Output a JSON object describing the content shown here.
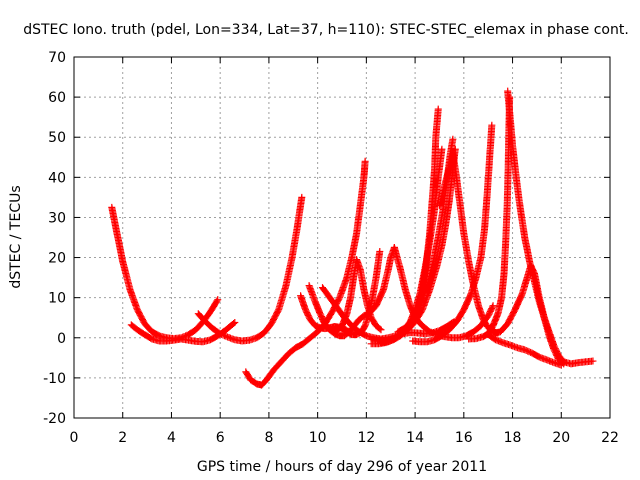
{
  "chart_data": {
    "type": "scatter",
    "title": "dSTEC Iono. truth (pdel, Lon=334, Lat=37, h=110): STEC-STEC_elemax in phase cont.",
    "xlabel": "GPS time / hours of day 296 of year 2011",
    "ylabel": "dSTEC  / TECUs",
    "xlim": [
      0,
      22
    ],
    "ylim": [
      -20,
      70
    ],
    "x_ticks": [
      0,
      2,
      4,
      6,
      8,
      10,
      12,
      14,
      16,
      18,
      20,
      22
    ],
    "y_ticks": [
      -20,
      -10,
      0,
      10,
      20,
      30,
      40,
      50,
      60,
      70
    ],
    "x_tick_labels": [
      "0",
      "2",
      "4",
      "6",
      "8",
      "10",
      "12",
      "14",
      "16",
      "18",
      "20",
      "22"
    ],
    "y_tick_labels": [
      "-20",
      "-10",
      "0",
      "10",
      "20",
      "30",
      "40",
      "50",
      "60",
      "70"
    ],
    "grid": true,
    "marker": "plus",
    "color": "#ff0000",
    "series": [
      {
        "points": [
          [
            1.55,
            32.5
          ],
          [
            1.8,
            25
          ],
          [
            2.0,
            19
          ],
          [
            2.3,
            12
          ],
          [
            2.6,
            7
          ],
          [
            2.9,
            3.5
          ],
          [
            3.2,
            1.5
          ],
          [
            3.5,
            0.5
          ],
          [
            3.8,
            0
          ],
          [
            4.1,
            -0.2
          ],
          [
            4.4,
            0
          ],
          [
            4.7,
            0.8
          ],
          [
            5.0,
            2
          ],
          [
            5.3,
            4
          ],
          [
            5.6,
            6.5
          ],
          [
            5.9,
            9.5
          ]
        ]
      },
      {
        "points": [
          [
            2.35,
            3.2
          ],
          [
            2.6,
            2.0
          ],
          [
            2.9,
            0.8
          ],
          [
            3.2,
            -0.3
          ],
          [
            3.5,
            -0.8
          ],
          [
            3.8,
            -0.8
          ],
          [
            4.1,
            -0.6
          ],
          [
            4.4,
            -0.3
          ],
          [
            4.7,
            -0.6
          ],
          [
            5.0,
            -0.9
          ],
          [
            5.3,
            -1.0
          ],
          [
            5.6,
            -0.5
          ],
          [
            5.9,
            0.5
          ],
          [
            6.2,
            1.8
          ],
          [
            6.6,
            3.8
          ]
        ]
      },
      {
        "points": [
          [
            5.1,
            6
          ],
          [
            5.4,
            4
          ],
          [
            5.7,
            2.3
          ],
          [
            6.0,
            1
          ],
          [
            6.3,
            0.2
          ],
          [
            6.6,
            -0.5
          ],
          [
            6.9,
            -0.8
          ],
          [
            7.2,
            -0.6
          ],
          [
            7.5,
            0
          ],
          [
            7.8,
            1.2
          ],
          [
            8.1,
            3.5
          ],
          [
            8.4,
            7
          ],
          [
            8.7,
            13
          ],
          [
            8.95,
            20
          ],
          [
            9.15,
            27
          ],
          [
            9.35,
            35
          ]
        ]
      },
      {
        "points": [
          [
            7.05,
            -8.5
          ],
          [
            7.25,
            -10.5
          ],
          [
            7.5,
            -11.5
          ],
          [
            7.7,
            -11.8
          ],
          [
            7.9,
            -10.5
          ],
          [
            8.2,
            -8
          ],
          [
            8.5,
            -6
          ],
          [
            8.8,
            -4
          ],
          [
            9.1,
            -2.5
          ],
          [
            9.4,
            -1.5
          ],
          [
            9.7,
            0
          ],
          [
            10.0,
            1.5
          ],
          [
            10.3,
            3.5
          ],
          [
            10.6,
            6.5
          ],
          [
            10.9,
            10
          ],
          [
            11.2,
            15
          ],
          [
            11.4,
            20
          ],
          [
            11.6,
            26
          ],
          [
            11.75,
            33
          ],
          [
            11.9,
            40
          ],
          [
            11.95,
            44
          ]
        ]
      },
      {
        "points": [
          [
            9.3,
            10.5
          ],
          [
            9.5,
            7
          ],
          [
            9.7,
            4.5
          ],
          [
            9.9,
            3
          ],
          [
            10.1,
            2.5
          ],
          [
            10.3,
            2.3
          ],
          [
            10.5,
            2.5
          ],
          [
            10.7,
            2.8
          ],
          [
            10.9,
            2.6
          ],
          [
            11.1,
            2.0
          ],
          [
            11.3,
            1.5
          ]
        ]
      },
      {
        "points": [
          [
            9.65,
            13
          ],
          [
            9.9,
            9
          ],
          [
            10.1,
            6
          ],
          [
            10.3,
            3.5
          ],
          [
            10.5,
            2
          ],
          [
            10.7,
            1
          ],
          [
            10.9,
            0.5
          ],
          [
            11.1,
            0.5
          ],
          [
            11.3,
            1.5
          ],
          [
            11.5,
            3
          ],
          [
            11.7,
            4.5
          ],
          [
            11.9,
            5.5
          ],
          [
            12.1,
            6
          ],
          [
            12.4,
            8
          ],
          [
            12.7,
            12
          ],
          [
            12.9,
            17
          ],
          [
            13.0,
            20
          ],
          [
            13.15,
            22.5
          ]
        ]
      },
      {
        "points": [
          [
            10.2,
            4.5
          ],
          [
            10.4,
            2.5
          ],
          [
            10.6,
            1.5
          ],
          [
            10.8,
            1.8
          ],
          [
            11.0,
            3
          ],
          [
            11.2,
            6
          ],
          [
            11.35,
            10
          ],
          [
            11.5,
            16
          ],
          [
            11.6,
            19.5
          ],
          [
            11.75,
            17
          ],
          [
            11.9,
            12
          ],
          [
            12.05,
            8
          ],
          [
            12.2,
            5
          ],
          [
            12.4,
            3
          ],
          [
            12.6,
            2
          ]
        ]
      },
      {
        "points": [
          [
            10.2,
            12.5
          ],
          [
            10.5,
            10
          ],
          [
            10.8,
            7.5
          ],
          [
            11.1,
            5
          ],
          [
            11.4,
            3
          ],
          [
            11.7,
            1.5
          ],
          [
            12.0,
            0.5
          ],
          [
            12.3,
            0
          ],
          [
            12.6,
            -0.3
          ],
          [
            12.9,
            0
          ],
          [
            13.2,
            0.5
          ],
          [
            13.5,
            1
          ],
          [
            13.8,
            1.3
          ],
          [
            14.1,
            1.2
          ],
          [
            14.4,
            1.0
          ],
          [
            14.7,
            1.2
          ],
          [
            15.0,
            1.8
          ],
          [
            15.3,
            2.8
          ],
          [
            15.6,
            4
          ]
        ]
      },
      {
        "points": [
          [
            12.55,
            21.5
          ],
          [
            12.4,
            15
          ],
          [
            12.25,
            10
          ],
          [
            12.1,
            6
          ],
          [
            11.95,
            3
          ],
          [
            11.8,
            1.5
          ],
          [
            11.6,
            0.8
          ],
          [
            11.4,
            0.8
          ],
          [
            11.2,
            1.5
          ],
          [
            11.0,
            3
          ]
        ]
      },
      {
        "points": [
          [
            13.15,
            22.5
          ],
          [
            13.4,
            17
          ],
          [
            13.6,
            12
          ],
          [
            13.8,
            8
          ],
          [
            14.0,
            5
          ],
          [
            14.3,
            3
          ],
          [
            14.6,
            1.5
          ],
          [
            14.9,
            0.8
          ],
          [
            15.2,
            0.3
          ],
          [
            15.5,
            0
          ],
          [
            15.8,
            0
          ],
          [
            16.1,
            0.5
          ],
          [
            16.4,
            1.5
          ],
          [
            16.7,
            3
          ],
          [
            17.0,
            5.5
          ],
          [
            17.2,
            8
          ]
        ]
      },
      {
        "points": [
          [
            12.2,
            -0.3
          ],
          [
            12.5,
            -0.6
          ],
          [
            12.8,
            -0.6
          ],
          [
            13.1,
            -0.2
          ],
          [
            13.4,
            0.8
          ],
          [
            13.7,
            2.2
          ],
          [
            13.9,
            4
          ],
          [
            14.1,
            7
          ],
          [
            14.3,
            12
          ],
          [
            14.45,
            18
          ],
          [
            14.6,
            26
          ],
          [
            14.7,
            34
          ],
          [
            14.8,
            42
          ],
          [
            14.85,
            50
          ],
          [
            14.95,
            57
          ]
        ]
      },
      {
        "points": [
          [
            12.6,
            -1.2
          ],
          [
            12.9,
            -1.0
          ],
          [
            13.2,
            -0.2
          ],
          [
            13.5,
            1.5
          ],
          [
            13.8,
            4
          ],
          [
            14.0,
            7
          ],
          [
            14.2,
            11
          ],
          [
            14.4,
            17
          ],
          [
            14.6,
            24
          ],
          [
            14.8,
            32
          ],
          [
            14.95,
            40
          ],
          [
            15.1,
            47
          ]
        ]
      },
      {
        "points": [
          [
            13.3,
            1.5
          ],
          [
            13.6,
            2.5
          ],
          [
            13.9,
            4.5
          ],
          [
            14.2,
            8
          ],
          [
            14.5,
            13
          ],
          [
            14.75,
            19
          ],
          [
            14.95,
            25
          ],
          [
            15.15,
            32
          ],
          [
            15.3,
            39
          ],
          [
            15.45,
            46
          ],
          [
            15.55,
            49.5
          ]
        ]
      },
      {
        "points": [
          [
            15.0,
            33
          ],
          [
            15.3,
            40
          ],
          [
            15.55,
            46
          ],
          [
            15.7,
            40
          ],
          [
            15.85,
            33
          ],
          [
            16.0,
            26
          ],
          [
            16.2,
            19
          ],
          [
            16.4,
            13
          ],
          [
            16.6,
            8
          ],
          [
            16.8,
            4.5
          ],
          [
            17.0,
            2.5
          ],
          [
            17.2,
            1.5
          ],
          [
            17.4,
            1.2
          ]
        ]
      },
      {
        "points": [
          [
            13.9,
            -0.8
          ],
          [
            14.2,
            -1.0
          ],
          [
            14.5,
            -1.0
          ],
          [
            14.8,
            -0.5
          ],
          [
            15.1,
            0.5
          ],
          [
            15.4,
            2
          ],
          [
            15.7,
            4
          ],
          [
            16.0,
            7
          ],
          [
            16.3,
            11
          ],
          [
            16.5,
            15
          ],
          [
            16.7,
            20
          ],
          [
            16.85,
            27
          ],
          [
            16.95,
            35
          ],
          [
            17.05,
            44
          ],
          [
            17.15,
            53
          ]
        ]
      },
      {
        "points": [
          [
            12.2,
            -1.5
          ],
          [
            12.5,
            -1.5
          ],
          [
            12.8,
            -1.2
          ],
          [
            13.1,
            -0.5
          ],
          [
            13.4,
            0.5
          ],
          [
            13.7,
            2
          ],
          [
            14.0,
            4
          ],
          [
            14.3,
            7
          ],
          [
            14.6,
            12
          ],
          [
            14.9,
            18
          ],
          [
            15.1,
            23
          ],
          [
            15.25,
            28
          ],
          [
            15.4,
            34
          ],
          [
            15.55,
            42
          ],
          [
            15.65,
            47
          ]
        ]
      },
      {
        "points": [
          [
            17.8,
            61.5
          ],
          [
            17.9,
            55
          ],
          [
            18.0,
            48
          ],
          [
            18.15,
            40
          ],
          [
            18.3,
            33
          ],
          [
            18.5,
            25
          ],
          [
            18.7,
            19
          ],
          [
            18.9,
            14
          ],
          [
            19.1,
            9
          ],
          [
            19.3,
            5
          ],
          [
            19.5,
            1.5
          ],
          [
            19.7,
            -2
          ],
          [
            19.9,
            -4.5
          ],
          [
            20.1,
            -6
          ],
          [
            20.4,
            -6.5
          ],
          [
            20.7,
            -6.2
          ],
          [
            21.0,
            -6
          ],
          [
            21.3,
            -5.8
          ]
        ]
      },
      {
        "points": [
          [
            16.2,
            -0.3
          ],
          [
            16.5,
            -0.2
          ],
          [
            16.8,
            0.3
          ],
          [
            17.0,
            1
          ],
          [
            17.2,
            3
          ],
          [
            17.4,
            6
          ],
          [
            17.55,
            10
          ],
          [
            17.65,
            16
          ],
          [
            17.72,
            24
          ],
          [
            17.78,
            33
          ],
          [
            17.82,
            42
          ],
          [
            17.85,
            52
          ],
          [
            17.88,
            60
          ]
        ]
      },
      {
        "points": [
          [
            17.1,
            2.5
          ],
          [
            17.3,
            1.2
          ],
          [
            17.5,
            1.5
          ],
          [
            17.8,
            3.5
          ],
          [
            18.1,
            7
          ],
          [
            18.4,
            11
          ],
          [
            18.6,
            15
          ],
          [
            18.75,
            18
          ],
          [
            18.9,
            16
          ],
          [
            19.1,
            10
          ],
          [
            19.3,
            5
          ],
          [
            19.5,
            0.5
          ],
          [
            19.7,
            -3
          ],
          [
            19.9,
            -5.5
          ],
          [
            20.1,
            -6.5
          ]
        ]
      },
      {
        "points": [
          [
            17.0,
            0.8
          ],
          [
            17.3,
            -0.5
          ],
          [
            17.6,
            -1.2
          ],
          [
            17.9,
            -1.8
          ],
          [
            18.2,
            -2.5
          ],
          [
            18.5,
            -3
          ],
          [
            18.8,
            -3.8
          ],
          [
            19.1,
            -4.8
          ],
          [
            19.4,
            -5.5
          ],
          [
            19.7,
            -6.2
          ],
          [
            20.0,
            -6.8
          ]
        ]
      }
    ]
  }
}
